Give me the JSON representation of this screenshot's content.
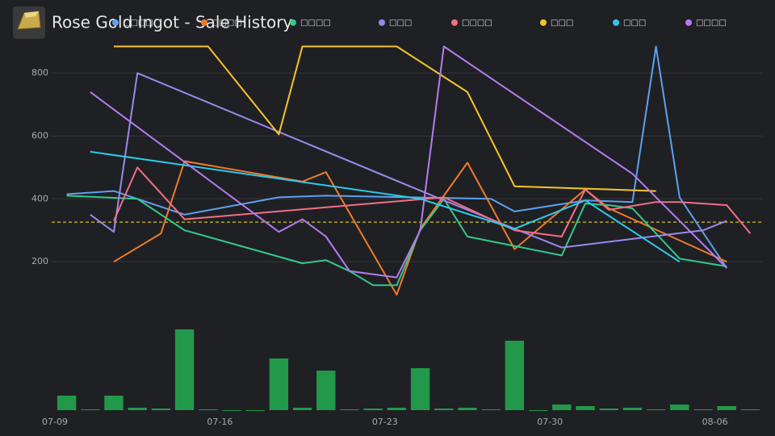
{
  "chart_data": [
    {
      "type": "line",
      "title": "Rose Gold Ingot - Sale History",
      "xlim": [
        "07-09",
        "08-08"
      ],
      "xticks": [
        "07-09",
        "07-16",
        "07-23",
        "07-30",
        "08-06"
      ],
      "ylim": [
        0,
        930
      ],
      "yticks": [
        200,
        400,
        600,
        800
      ],
      "grid": true,
      "hline": 326,
      "hline_color": "#d4c21c",
      "legend": "top",
      "series": [
        {
          "name": "□□□□",
          "color": "#5ea1ef",
          "x": [
            "07-09",
            "07-11",
            "07-14",
            "07-18",
            "07-20",
            "07-27",
            "07-28",
            "07-31",
            "08-02",
            "08-03",
            "08-04",
            "08-06"
          ],
          "values": [
            415,
            425,
            350,
            405,
            410,
            400,
            360,
            395,
            390,
            885,
            405,
            180
          ]
        },
        {
          "name": "□□□□",
          "color": "#f07a2a",
          "x": [
            "07-11",
            "07-13",
            "07-14",
            "07-19",
            "07-20",
            "07-23",
            "07-24",
            "07-26",
            "07-28",
            "07-31",
            "08-01",
            "08-06"
          ],
          "values": [
            200,
            290,
            520,
            455,
            485,
            95,
            305,
            515,
            240,
            430,
            370,
            200
          ]
        },
        {
          "name": "□□□□",
          "color": "#34c98a",
          "x": [
            "07-09",
            "07-12",
            "07-14",
            "07-19",
            "07-20",
            "07-21",
            "07-22",
            "07-23",
            "07-24",
            "07-25",
            "07-26",
            "07-28",
            "07-30",
            "07-31",
            "08-01",
            "08-02",
            "08-04",
            "08-06"
          ],
          "values": [
            410,
            400,
            300,
            195,
            205,
            170,
            125,
            125,
            300,
            400,
            280,
            250,
            220,
            385,
            380,
            370,
            210,
            185
          ]
        },
        {
          "name": "□□□",
          "color": "#9d87ee",
          "x": [
            "07-10",
            "07-11",
            "07-12",
            "07-25",
            "07-30",
            "08-05",
            "08-06"
          ],
          "values": [
            350,
            295,
            800,
            395,
            245,
            300,
            330
          ]
        },
        {
          "name": "□□□□",
          "color": "#f26f87",
          "x": [
            "07-11",
            "07-12",
            "07-14",
            "07-25",
            "07-28",
            "07-30",
            "07-31",
            "08-01",
            "08-03",
            "08-04",
            "08-06",
            "08-07"
          ],
          "values": [
            330,
            500,
            335,
            405,
            300,
            280,
            430,
            365,
            390,
            390,
            380,
            290
          ]
        },
        {
          "name": "□□□",
          "color": "#f5c527",
          "x": [
            "07-11",
            "07-15",
            "07-18",
            "07-19",
            "07-23",
            "07-26",
            "07-28",
            "08-03"
          ],
          "values": [
            885,
            885,
            605,
            885,
            885,
            740,
            440,
            425
          ]
        },
        {
          "name": "□□□",
          "color": "#2dcbe8",
          "x": [
            "07-10",
            "07-24",
            "07-28",
            "07-31",
            "08-04"
          ],
          "values": [
            550,
            400,
            305,
            395,
            200
          ]
        },
        {
          "name": "□□□□",
          "color": "#b57cf0",
          "x": [
            "07-10",
            "07-18",
            "07-19",
            "07-20",
            "07-21",
            "07-23",
            "07-24",
            "07-25",
            "08-02",
            "08-06"
          ],
          "values": [
            740,
            295,
            335,
            280,
            170,
            150,
            300,
            885,
            480,
            180
          ]
        }
      ]
    },
    {
      "type": "bar",
      "color": "#22994a",
      "ylim": [
        0,
        100
      ],
      "x": [
        "07-09",
        "07-10",
        "07-11",
        "07-12",
        "07-13",
        "07-14",
        "07-15",
        "07-16",
        "07-17",
        "07-18",
        "07-19",
        "07-20",
        "07-21",
        "07-22",
        "07-23",
        "07-24",
        "07-25",
        "07-26",
        "07-27",
        "07-28",
        "07-29",
        "07-30",
        "07-31",
        "08-01",
        "08-02",
        "08-03",
        "08-04",
        "08-05",
        "08-06",
        "08-07"
      ],
      "values": [
        18,
        1,
        18,
        3,
        2,
        100,
        1,
        0,
        0,
        64,
        3,
        49,
        1,
        2,
        3,
        52,
        2,
        3,
        1,
        86,
        0,
        7,
        5,
        2,
        3,
        1,
        7,
        1,
        5,
        1
      ]
    }
  ]
}
